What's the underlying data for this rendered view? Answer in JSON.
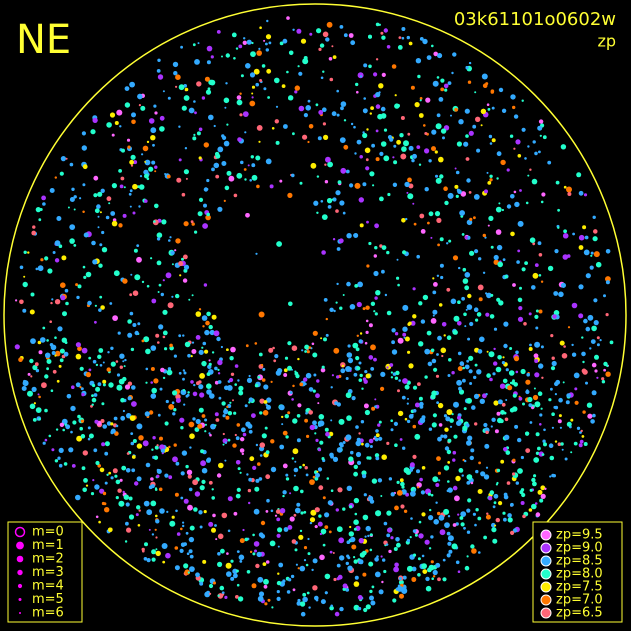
{
  "corner_label": "NE",
  "header": {
    "title": "03k61101o0602w",
    "subtitle": "zp"
  },
  "magnitude_legend": {
    "items": [
      {
        "label": "m=0"
      },
      {
        "label": "m=1"
      },
      {
        "label": "m=2"
      },
      {
        "label": "m=3"
      },
      {
        "label": "m=4"
      },
      {
        "label": "m=5"
      },
      {
        "label": "m=6"
      }
    ],
    "color": "#ff00ff"
  },
  "zp_legend": {
    "items": [
      {
        "label": "zp=9.5",
        "color": "#ff66ff"
      },
      {
        "label": "zp=9.0",
        "color": "#aa33ff"
      },
      {
        "label": "zp=8.5",
        "color": "#33aaff"
      },
      {
        "label": "zp=8.0",
        "color": "#22ffcc"
      },
      {
        "label": "zp=7.5",
        "color": "#ffee00"
      },
      {
        "label": "zp=7.0",
        "color": "#ff7700"
      },
      {
        "label": "zp=6.5",
        "color": "#ff6677"
      }
    ]
  }
}
